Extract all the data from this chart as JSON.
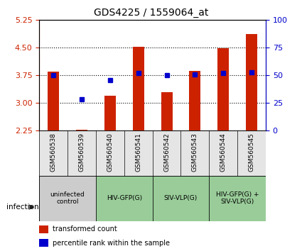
{
  "title": "GDS4225 / 1559064_at",
  "samples": [
    "GSM560538",
    "GSM560539",
    "GSM560540",
    "GSM560541",
    "GSM560542",
    "GSM560543",
    "GSM560544",
    "GSM560545"
  ],
  "red_values": [
    3.85,
    2.28,
    3.2,
    4.52,
    3.3,
    3.87,
    4.48,
    4.88
  ],
  "blue_values": [
    3.75,
    3.1,
    3.62,
    3.82,
    3.75,
    3.78,
    3.82,
    3.83
  ],
  "ylim_left": [
    2.25,
    5.25
  ],
  "ylim_right": [
    0,
    100
  ],
  "yticks_left": [
    2.25,
    3.0,
    3.75,
    4.5,
    5.25
  ],
  "yticks_right": [
    0,
    25,
    50,
    75,
    100
  ],
  "bar_color": "#cc2200",
  "dot_color": "#0000cc",
  "grid_color": "#000000",
  "bg_color": "#ffffff",
  "plot_bg": "#ffffff",
  "infection_groups": [
    {
      "label": "uninfected\ncontrol",
      "start": 0,
      "end": 2,
      "color": "#dddddd"
    },
    {
      "label": "HIV-GFP(G)",
      "start": 2,
      "end": 4,
      "color": "#aaddaa"
    },
    {
      "label": "SIV-VLP(G)",
      "start": 4,
      "end": 6,
      "color": "#aaddaa"
    },
    {
      "label": "HIV-GFP(G) +\nSIV-VLP(G)",
      "start": 6,
      "end": 8,
      "color": "#aaddaa"
    }
  ],
  "xlabel_color": "#888888",
  "left_axis_color": "#cc2200",
  "right_axis_color": "#0000cc",
  "bar_width": 0.4,
  "bar_bottom": 2.25
}
